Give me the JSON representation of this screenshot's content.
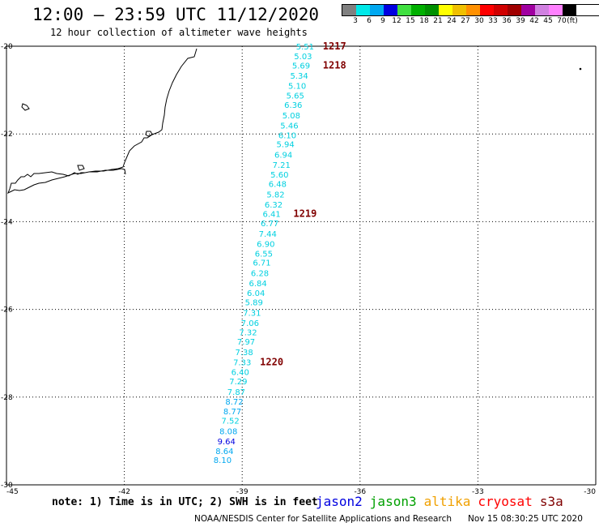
{
  "header": {
    "title": "12:00 – 23:59 UTC 11/12/2020",
    "subtitle": "12 hour collection of altimeter wave heights"
  },
  "legend": {
    "labels": [
      "3",
      "6",
      "9",
      "12",
      "15",
      "18",
      "21",
      "24",
      "27",
      "30",
      "33",
      "36",
      "39",
      "42",
      "45",
      "70",
      "(ft)"
    ],
    "colors": [
      "#808080",
      "#00e8e8",
      "#00a8f0",
      "#0000e0",
      "#40e040",
      "#00b000",
      "#009000",
      "#ffff00",
      "#f0c000",
      "#ff9000",
      "#ff0000",
      "#d00000",
      "#a00000",
      "#a000a0",
      "#d080e0",
      "#ff80ff",
      "#000000"
    ]
  },
  "axes": {
    "lon_labels": [
      "-45",
      "-42",
      "-39",
      "-36",
      "-33",
      "-30"
    ],
    "lat_labels": [
      "-20",
      "-22",
      "-24",
      "-26",
      "-28",
      "-30"
    ],
    "lon_range": [
      -45,
      -30
    ],
    "lat_range": [
      -20,
      -30
    ]
  },
  "track_points": [
    {
      "value": "5.51",
      "lon": -37.4,
      "lat": -20.0,
      "color": "#00d0e0"
    },
    {
      "value": "5.03",
      "lon": -37.45,
      "lat": -20.22,
      "color": "#00d0e0"
    },
    {
      "value": "5.69",
      "lon": -37.5,
      "lat": -20.43,
      "color": "#00d0e0"
    },
    {
      "value": "5.34",
      "lon": -37.55,
      "lat": -20.67,
      "color": "#00d0e0"
    },
    {
      "value": "5.10",
      "lon": -37.6,
      "lat": -20.9,
      "color": "#00d0e0"
    },
    {
      "value": "5.65",
      "lon": -37.65,
      "lat": -21.12,
      "color": "#00d0e0"
    },
    {
      "value": "6.36",
      "lon": -37.7,
      "lat": -21.33,
      "color": "#00d0e0"
    },
    {
      "value": "5.08",
      "lon": -37.75,
      "lat": -21.57,
      "color": "#00d0e0"
    },
    {
      "value": "5.46",
      "lon": -37.8,
      "lat": -21.8,
      "color": "#00d0e0"
    },
    {
      "value": "6.10",
      "lon": -37.85,
      "lat": -22.02,
      "color": "#00d0e0"
    },
    {
      "value": "5.94",
      "lon": -37.9,
      "lat": -22.23,
      "color": "#00d0e0"
    },
    {
      "value": "6.94",
      "lon": -37.95,
      "lat": -22.47,
      "color": "#00d0e0"
    },
    {
      "value": "7.21",
      "lon": -38.0,
      "lat": -22.7,
      "color": "#00d0e0"
    },
    {
      "value": "5.60",
      "lon": -38.05,
      "lat": -22.92,
      "color": "#00d0e0"
    },
    {
      "value": "6.48",
      "lon": -38.1,
      "lat": -23.13,
      "color": "#00d0e0"
    },
    {
      "value": "5.82",
      "lon": -38.15,
      "lat": -23.37,
      "color": "#00d0e0"
    },
    {
      "value": "6.32",
      "lon": -38.2,
      "lat": -23.6,
      "color": "#00d0e0"
    },
    {
      "value": "6.41",
      "lon": -38.25,
      "lat": -23.82,
      "color": "#00d0e0"
    },
    {
      "value": "6.77",
      "lon": -38.3,
      "lat": -24.03,
      "color": "#00d0e0"
    },
    {
      "value": "7.44",
      "lon": -38.35,
      "lat": -24.27,
      "color": "#00d0e0"
    },
    {
      "value": "6.90",
      "lon": -38.4,
      "lat": -24.5,
      "color": "#00d0e0"
    },
    {
      "value": "6.55",
      "lon": -38.45,
      "lat": -24.72,
      "color": "#00d0e0"
    },
    {
      "value": "6.71",
      "lon": -38.5,
      "lat": -24.93,
      "color": "#00d0e0"
    },
    {
      "value": "6.28",
      "lon": -38.55,
      "lat": -25.17,
      "color": "#00d0e0"
    },
    {
      "value": "6.84",
      "lon": -38.6,
      "lat": -25.4,
      "color": "#00d0e0"
    },
    {
      "value": "6.04",
      "lon": -38.65,
      "lat": -25.62,
      "color": "#00d0e0"
    },
    {
      "value": "5.89",
      "lon": -38.7,
      "lat": -25.83,
      "color": "#00d0e0"
    },
    {
      "value": "7.31",
      "lon": -38.75,
      "lat": -26.07,
      "color": "#00d0e0"
    },
    {
      "value": "7.06",
      "lon": -38.8,
      "lat": -26.3,
      "color": "#00d0e0"
    },
    {
      "value": "7.32",
      "lon": -38.85,
      "lat": -26.52,
      "color": "#00d0e0"
    },
    {
      "value": "7.97",
      "lon": -38.9,
      "lat": -26.73,
      "color": "#00d0e0"
    },
    {
      "value": "7.38",
      "lon": -38.95,
      "lat": -26.97,
      "color": "#00d0e0"
    },
    {
      "value": "7.33",
      "lon": -39.0,
      "lat": -27.2,
      "color": "#00d0e0"
    },
    {
      "value": "6.40",
      "lon": -39.05,
      "lat": -27.42,
      "color": "#00d0e0"
    },
    {
      "value": "7.29",
      "lon": -39.1,
      "lat": -27.63,
      "color": "#00d0e0"
    },
    {
      "value": "7.87",
      "lon": -39.15,
      "lat": -27.87,
      "color": "#00d0e0"
    },
    {
      "value": "8.72",
      "lon": -39.2,
      "lat": -28.1,
      "color": "#00a8f0"
    },
    {
      "value": "8.77",
      "lon": -39.25,
      "lat": -28.32,
      "color": "#00a8f0"
    },
    {
      "value": "7.52",
      "lon": -39.3,
      "lat": -28.53,
      "color": "#00d0e0"
    },
    {
      "value": "8.08",
      "lon": -39.35,
      "lat": -28.77,
      "color": "#00a8f0"
    },
    {
      "value": "9.64",
      "lon": -39.4,
      "lat": -29.0,
      "color": "#0000e0"
    },
    {
      "value": "8.64",
      "lon": -39.45,
      "lat": -29.22,
      "color": "#00a8f0"
    },
    {
      "value": "8.10",
      "lon": -39.5,
      "lat": -29.43,
      "color": "#00a8f0"
    }
  ],
  "time_labels": [
    {
      "text": "1217",
      "lon": -36.65,
      "lat": -20.0
    },
    {
      "text": "1218",
      "lon": -36.65,
      "lat": -20.43
    },
    {
      "text": "1219",
      "lon": -37.4,
      "lat": -23.82
    },
    {
      "text": "1220",
      "lon": -38.25,
      "lat": -27.2
    }
  ],
  "time_label_color": "#800000",
  "note": "note: 1) Time is in UTC; 2) SWH is in feet",
  "satellites": [
    {
      "name": "jason2",
      "color": "#0000e0"
    },
    {
      "name": "jason3",
      "color": "#00a000"
    },
    {
      "name": "altika",
      "color": "#f0a000"
    },
    {
      "name": "cryosat",
      "color": "#ff0000"
    },
    {
      "name": "s3a",
      "color": "#800000"
    }
  ],
  "footer": {
    "credit": "NOAA/NESDIS Center for Satellite Applications and Research",
    "timestamp": "Nov 15 08:30:25 UTC 2020"
  }
}
